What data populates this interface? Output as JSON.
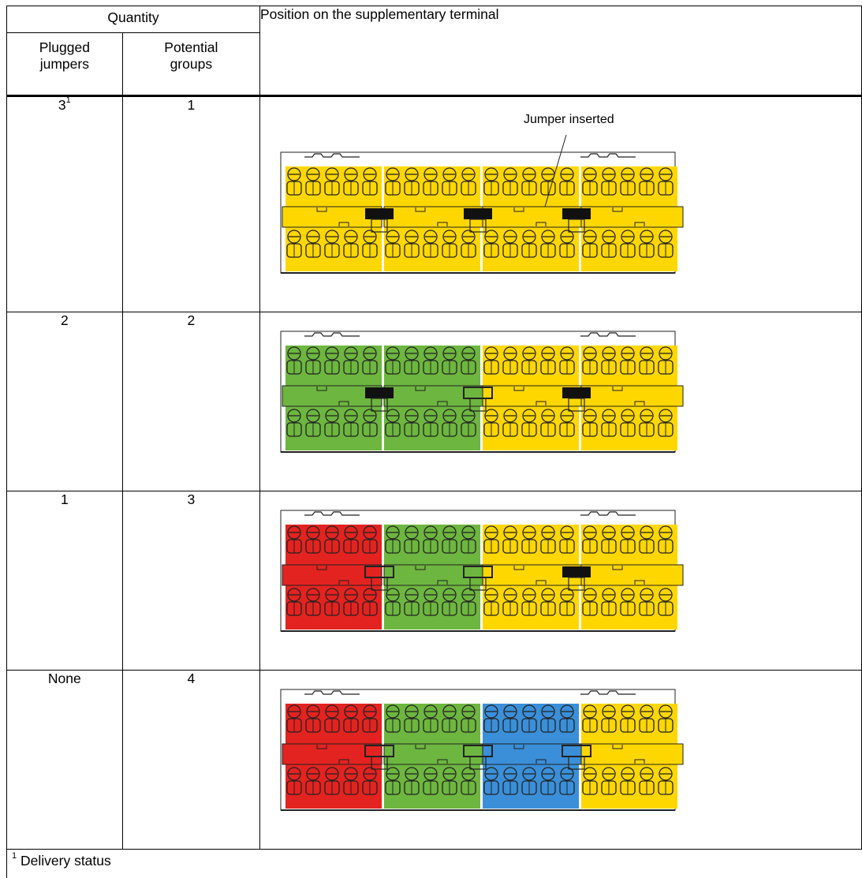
{
  "header": {
    "quantity": "Quantity",
    "position": "Position on the supplementary terminal",
    "plugged_line1": "Plugged",
    "plugged_line2": "jumpers",
    "potential_line1": "Potential",
    "potential_line2": "groups"
  },
  "rows": [
    {
      "plugged": "3",
      "plugged_sup": "1",
      "groups": "1",
      "block_colors": [
        "yellow",
        "yellow",
        "yellow",
        "yellow"
      ],
      "jumpers": [
        "inserted",
        "inserted",
        "inserted"
      ]
    },
    {
      "plugged": "2",
      "plugged_sup": "",
      "groups": "2",
      "block_colors": [
        "green",
        "green",
        "yellow",
        "yellow"
      ],
      "jumpers": [
        "inserted",
        "open",
        "inserted"
      ]
    },
    {
      "plugged": "1",
      "plugged_sup": "",
      "groups": "3",
      "block_colors": [
        "red",
        "green",
        "yellow",
        "yellow"
      ],
      "jumpers": [
        "open",
        "open",
        "inserted"
      ]
    },
    {
      "plugged": "None",
      "plugged_sup": "",
      "groups": "4",
      "block_colors": [
        "red",
        "green",
        "blue",
        "yellow"
      ],
      "jumpers": [
        "open",
        "open",
        "open"
      ]
    }
  ],
  "callout": "Jumper inserted",
  "colors": {
    "yellow": "#FFD700",
    "green": "#6DB63F",
    "red": "#E32320",
    "blue": "#3A8FD8"
  },
  "footnote": {
    "sup": "1",
    "text": "Delivery status"
  }
}
